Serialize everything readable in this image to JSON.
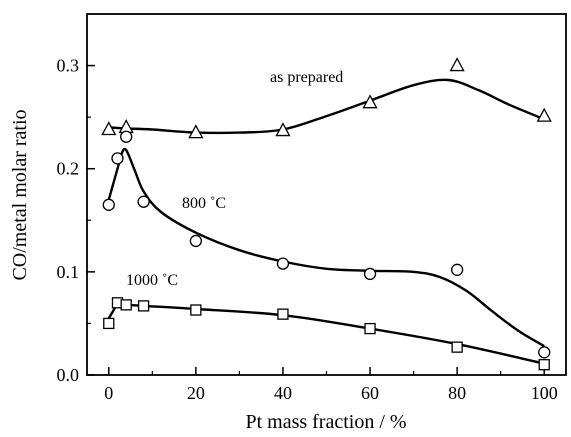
{
  "chart_data": {
    "type": "scatter",
    "xlabel": "Pt mass fraction / %",
    "ylabel": "CO/metal molar ratio",
    "xlim": [
      -5,
      105
    ],
    "ylim": [
      0,
      0.35
    ],
    "x_ticks": [
      0,
      20,
      40,
      60,
      80,
      100
    ],
    "x_tick_labels": [
      "0",
      "20",
      "40",
      "60",
      "80",
      "100"
    ],
    "y_ticks": [
      0.0,
      0.1,
      0.2,
      0.3
    ],
    "y_tick_labels": [
      "0.0",
      "0.1",
      "0.2",
      "0.3"
    ],
    "grid": false,
    "legend": "none",
    "series": [
      {
        "label": "as prepared",
        "marker": "triangle",
        "x": [
          0,
          4,
          20,
          40,
          60,
          80,
          100
        ],
        "y": [
          0.238,
          0.24,
          0.235,
          0.237,
          0.264,
          0.3,
          0.251
        ],
        "curve_x": [
          0,
          4,
          10,
          20,
          30,
          40,
          50,
          60,
          70,
          78,
          85,
          92,
          100
        ],
        "curve_y": [
          0.24,
          0.239,
          0.238,
          0.235,
          0.235,
          0.238,
          0.251,
          0.266,
          0.281,
          0.286,
          0.276,
          0.262,
          0.248
        ]
      },
      {
        "label": "800 ˚C",
        "marker": "circle",
        "x": [
          0,
          2,
          4,
          8,
          20,
          40,
          60,
          80,
          100
        ],
        "y": [
          0.165,
          0.21,
          0.231,
          0.168,
          0.13,
          0.108,
          0.098,
          0.102,
          0.022
        ],
        "curve_x": [
          0,
          2,
          3,
          4,
          6,
          8,
          12,
          20,
          30,
          40,
          50,
          60,
          70,
          76,
          82,
          88,
          94,
          100
        ],
        "curve_y": [
          0.17,
          0.2,
          0.215,
          0.218,
          0.198,
          0.178,
          0.158,
          0.138,
          0.121,
          0.11,
          0.103,
          0.101,
          0.1,
          0.095,
          0.082,
          0.062,
          0.043,
          0.028
        ]
      },
      {
        "label": "1000 ˚C",
        "marker": "square",
        "x": [
          0,
          2,
          4,
          8,
          20,
          40,
          60,
          80,
          100
        ],
        "y": [
          0.05,
          0.07,
          0.068,
          0.067,
          0.063,
          0.059,
          0.045,
          0.027,
          0.01
        ],
        "curve_x": [
          0,
          1,
          2,
          4,
          8,
          20,
          40,
          60,
          80,
          100
        ],
        "curve_y": [
          0.055,
          0.062,
          0.068,
          0.068,
          0.067,
          0.064,
          0.058,
          0.045,
          0.03,
          0.011
        ]
      }
    ]
  }
}
